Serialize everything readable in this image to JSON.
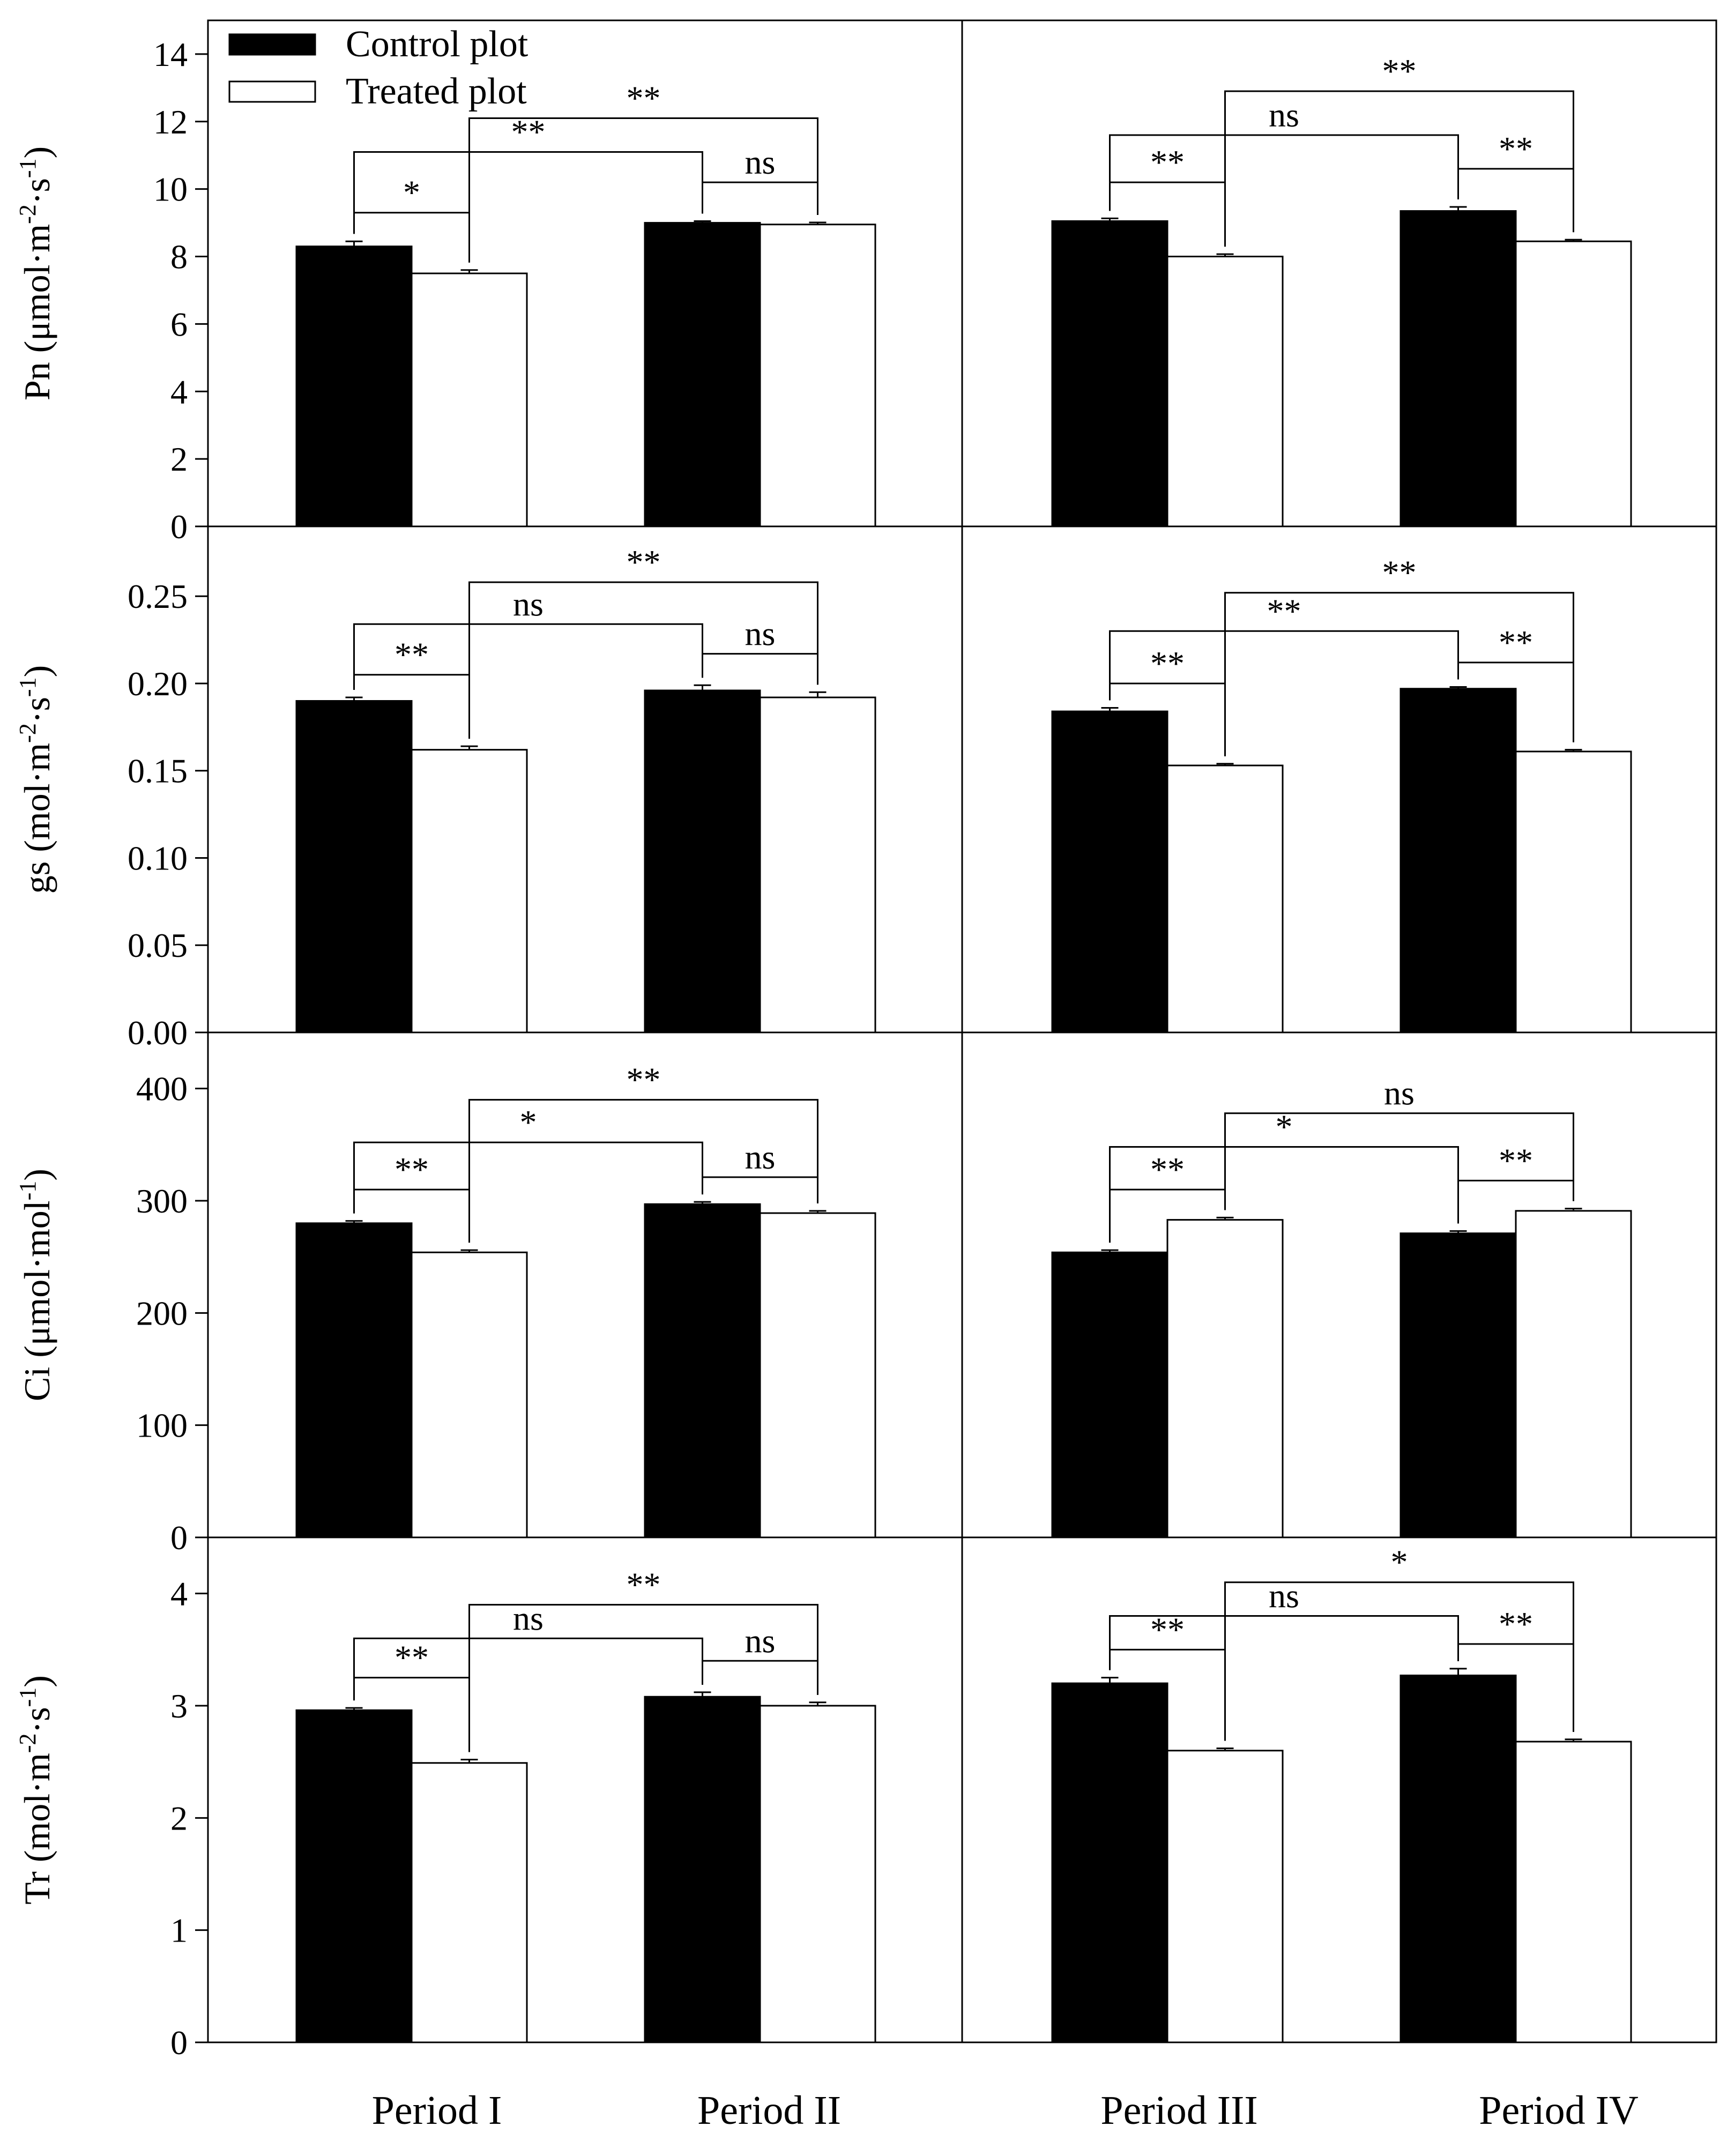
{
  "legend": [
    {
      "key": "control",
      "label": "Control plot",
      "color": "#000000"
    },
    {
      "key": "treated",
      "label": "Treated plot",
      "color": "#ffffff"
    }
  ],
  "periods": [
    "Period I",
    "Period II",
    "Period III",
    "Period IV"
  ],
  "chart_data": [
    {
      "type": "bar",
      "id": "Pn",
      "ylabel_main": "Pn (μmol·m",
      "ylabel_sup1": "-2",
      "ylabel_mid": "·s",
      "ylabel_sup2": "-1",
      "ylabel_end": ")",
      "ylim": [
        0,
        15
      ],
      "yticks": [
        0,
        2,
        4,
        6,
        8,
        10,
        12,
        14
      ],
      "tick_labels": [
        "0",
        "2",
        "4",
        "6",
        "8",
        "10",
        "12",
        "14"
      ],
      "categories": [
        "Period I",
        "Period II",
        "Period III",
        "Period IV"
      ],
      "series": [
        {
          "name": "Control plot",
          "values": [
            8.3,
            9.0,
            9.05,
            9.35
          ],
          "errors": [
            0.15,
            0.05,
            0.08,
            0.12
          ]
        },
        {
          "name": "Treated plot",
          "values": [
            7.5,
            8.95,
            8.0,
            8.45
          ],
          "errors": [
            0.1,
            0.06,
            0.07,
            0.05
          ]
        }
      ],
      "annotations": [
        {
          "from": [
            0,
            0
          ],
          "to": [
            0,
            1
          ],
          "level": 9.3,
          "label": "*"
        },
        {
          "from": [
            0,
            0
          ],
          "to": [
            1,
            0
          ],
          "level": 11.1,
          "label": "**"
        },
        {
          "from": [
            0,
            1
          ],
          "to": [
            1,
            1
          ],
          "level": 12.1,
          "label": "**"
        },
        {
          "from": [
            1,
            0
          ],
          "to": [
            1,
            1
          ],
          "level": 10.2,
          "label": "ns"
        },
        {
          "from": [
            2,
            0
          ],
          "to": [
            2,
            1
          ],
          "level": 10.2,
          "label": "**"
        },
        {
          "from": [
            2,
            0
          ],
          "to": [
            3,
            0
          ],
          "level": 11.6,
          "label": "ns"
        },
        {
          "from": [
            2,
            1
          ],
          "to": [
            3,
            1
          ],
          "level": 12.9,
          "label": "**"
        },
        {
          "from": [
            3,
            0
          ],
          "to": [
            3,
            1
          ],
          "level": 10.6,
          "label": "**"
        }
      ]
    },
    {
      "type": "bar",
      "id": "gs",
      "ylabel_main": "gs (mol·m",
      "ylabel_sup1": "-2",
      "ylabel_mid": "·s",
      "ylabel_sup2": "-1",
      "ylabel_end": ")",
      "ylim": [
        0,
        0.29
      ],
      "yticks": [
        0,
        0.05,
        0.1,
        0.15,
        0.2,
        0.25
      ],
      "tick_labels": [
        "0.00",
        "0.05",
        "0.10",
        "0.15",
        "0.20",
        "0.25"
      ],
      "categories": [
        "Period I",
        "Period II",
        "Period III",
        "Period IV"
      ],
      "series": [
        {
          "name": "Control plot",
          "values": [
            0.19,
            0.196,
            0.184,
            0.197
          ],
          "errors": [
            0.002,
            0.003,
            0.002,
            0.001
          ]
        },
        {
          "name": "Treated plot",
          "values": [
            0.162,
            0.192,
            0.153,
            0.161
          ],
          "errors": [
            0.002,
            0.003,
            0.001,
            0.001
          ]
        }
      ],
      "annotations": [
        {
          "from": [
            0,
            0
          ],
          "to": [
            0,
            1
          ],
          "level": 0.205,
          "label": "**"
        },
        {
          "from": [
            0,
            0
          ],
          "to": [
            1,
            0
          ],
          "level": 0.234,
          "label": "ns"
        },
        {
          "from": [
            0,
            1
          ],
          "to": [
            1,
            1
          ],
          "level": 0.258,
          "label": "**"
        },
        {
          "from": [
            1,
            0
          ],
          "to": [
            1,
            1
          ],
          "level": 0.217,
          "label": "ns"
        },
        {
          "from": [
            2,
            0
          ],
          "to": [
            2,
            1
          ],
          "level": 0.2,
          "label": "**"
        },
        {
          "from": [
            2,
            0
          ],
          "to": [
            3,
            0
          ],
          "level": 0.23,
          "label": "**"
        },
        {
          "from": [
            2,
            1
          ],
          "to": [
            3,
            1
          ],
          "level": 0.252,
          "label": "**"
        },
        {
          "from": [
            3,
            0
          ],
          "to": [
            3,
            1
          ],
          "level": 0.212,
          "label": "**"
        }
      ]
    },
    {
      "type": "bar",
      "id": "Ci",
      "ylabel_main": "Ci (μmol·mol",
      "ylabel_sup1": "-1",
      "ylabel_mid": "",
      "ylabel_sup2": "",
      "ylabel_end": ")",
      "ylim": [
        0,
        450
      ],
      "yticks": [
        0,
        100,
        200,
        300,
        400
      ],
      "tick_labels": [
        "0",
        "100",
        "200",
        "300",
        "400"
      ],
      "categories": [
        "Period I",
        "Period II",
        "Period III",
        "Period IV"
      ],
      "series": [
        {
          "name": "Control plot",
          "values": [
            280,
            297,
            254,
            271
          ],
          "errors": [
            2,
            2,
            2,
            2
          ]
        },
        {
          "name": "Treated plot",
          "values": [
            254,
            289,
            283,
            291
          ],
          "errors": [
            2,
            2,
            2,
            2
          ]
        }
      ],
      "annotations": [
        {
          "from": [
            0,
            0
          ],
          "to": [
            0,
            1
          ],
          "level": 310,
          "label": "**"
        },
        {
          "from": [
            0,
            0
          ],
          "to": [
            1,
            0
          ],
          "level": 352,
          "label": "*"
        },
        {
          "from": [
            0,
            1
          ],
          "to": [
            1,
            1
          ],
          "level": 390,
          "label": "**"
        },
        {
          "from": [
            1,
            0
          ],
          "to": [
            1,
            1
          ],
          "level": 321,
          "label": "ns"
        },
        {
          "from": [
            2,
            0
          ],
          "to": [
            2,
            1
          ],
          "level": 310,
          "label": "**"
        },
        {
          "from": [
            2,
            0
          ],
          "to": [
            3,
            0
          ],
          "level": 348,
          "label": "*"
        },
        {
          "from": [
            2,
            1
          ],
          "to": [
            3,
            1
          ],
          "level": 378,
          "label": "ns"
        },
        {
          "from": [
            3,
            0
          ],
          "to": [
            3,
            1
          ],
          "level": 318,
          "label": "**"
        }
      ]
    },
    {
      "type": "bar",
      "id": "Tr",
      "ylabel_main": "Tr (mol·m",
      "ylabel_sup1": "-2",
      "ylabel_mid": "·s",
      "ylabel_sup2": "-1",
      "ylabel_end": ")",
      "ylim": [
        0,
        4.5
      ],
      "yticks": [
        0,
        1,
        2,
        3,
        4
      ],
      "tick_labels": [
        "0",
        "1",
        "2",
        "3",
        "4"
      ],
      "categories": [
        "Period I",
        "Period II",
        "Period III",
        "Period IV"
      ],
      "series": [
        {
          "name": "Control plot",
          "values": [
            2.96,
            3.08,
            3.2,
            3.27
          ],
          "errors": [
            0.02,
            0.04,
            0.05,
            0.06
          ]
        },
        {
          "name": "Treated plot",
          "values": [
            2.49,
            3.0,
            2.6,
            2.68
          ],
          "errors": [
            0.03,
            0.03,
            0.02,
            0.02
          ]
        }
      ],
      "annotations": [
        {
          "from": [
            0,
            0
          ],
          "to": [
            0,
            1
          ],
          "level": 3.25,
          "label": "**"
        },
        {
          "from": [
            0,
            0
          ],
          "to": [
            1,
            0
          ],
          "level": 3.6,
          "label": "ns"
        },
        {
          "from": [
            0,
            1
          ],
          "to": [
            1,
            1
          ],
          "level": 3.9,
          "label": "**"
        },
        {
          "from": [
            1,
            0
          ],
          "to": [
            1,
            1
          ],
          "level": 3.4,
          "label": "ns"
        },
        {
          "from": [
            2,
            0
          ],
          "to": [
            2,
            1
          ],
          "level": 3.5,
          "label": "**"
        },
        {
          "from": [
            2,
            0
          ],
          "to": [
            3,
            0
          ],
          "level": 3.8,
          "label": "ns"
        },
        {
          "from": [
            2,
            1
          ],
          "to": [
            3,
            1
          ],
          "level": 4.1,
          "label": "*"
        },
        {
          "from": [
            3,
            0
          ],
          "to": [
            3,
            1
          ],
          "level": 3.55,
          "label": "**"
        }
      ]
    }
  ]
}
